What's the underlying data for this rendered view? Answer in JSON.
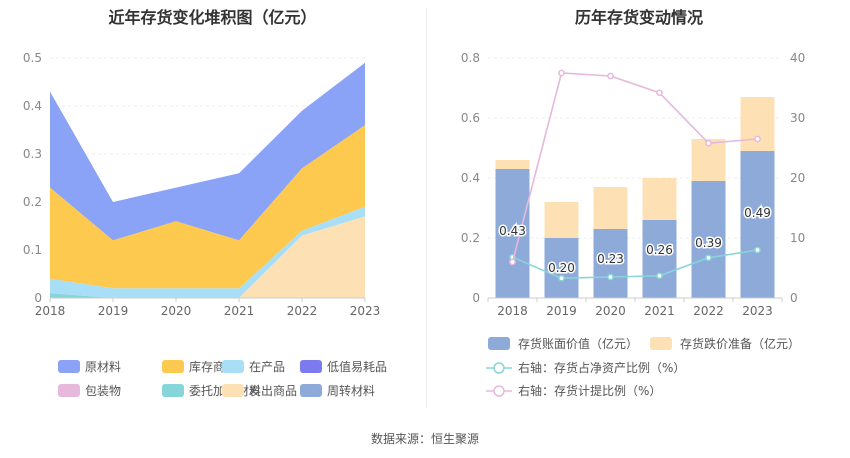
{
  "footer": {
    "source": "数据来源：恒生聚源"
  },
  "chart_data": [
    {
      "type": "area",
      "title": "近年存货变化堆积图（亿元）",
      "categories": [
        "2018",
        "2019",
        "2020",
        "2021",
        "2022",
        "2023"
      ],
      "ylim": [
        0,
        0.5
      ],
      "yticks": [
        "0",
        "0.1",
        "0.2",
        "0.3",
        "0.4",
        "0.5"
      ],
      "series": [
        {
          "name": "原材料",
          "color": "#8aa3f7",
          "values": [
            0.2,
            0.08,
            0.07,
            0.14,
            0.12,
            0.13
          ]
        },
        {
          "name": "库存商品",
          "color": "#fdc94f",
          "values": [
            0.19,
            0.1,
            0.14,
            0.1,
            0.13,
            0.17
          ]
        },
        {
          "name": "在产品",
          "color": "#a8dff7",
          "values": [
            0.03,
            0.02,
            0.02,
            0.02,
            0.01,
            0.02
          ]
        },
        {
          "name": "低值易耗品",
          "color": "#7b7bef",
          "values": [
            0,
            0,
            0,
            0,
            0,
            0
          ]
        },
        {
          "name": "包装物",
          "color": "#e6b8dc",
          "values": [
            0,
            0,
            0,
            0,
            0,
            0
          ]
        },
        {
          "name": "委托加工材料",
          "color": "#86d5d8",
          "values": [
            0.01,
            0,
            0,
            0,
            0,
            0
          ]
        },
        {
          "name": "发出商品",
          "color": "#fde0b3",
          "values": [
            0,
            0,
            0,
            0,
            0.13,
            0.17
          ]
        },
        {
          "name": "周转材料",
          "color": "#8eaad9",
          "values": [
            0,
            0,
            0,
            0,
            0,
            0
          ]
        }
      ],
      "legend_position": "bottom",
      "grid": true
    },
    {
      "type": "bar",
      "title": "历年存货变动情况",
      "categories": [
        "2018",
        "2019",
        "2020",
        "2021",
        "2022",
        "2023"
      ],
      "ylim_left": [
        0,
        0.8
      ],
      "yticks_left": [
        "0",
        "0.2",
        "0.4",
        "0.6",
        "0.8"
      ],
      "ylim_right": [
        0,
        40
      ],
      "yticks_right": [
        "0",
        "10",
        "20",
        "30",
        "40"
      ],
      "bar_series": [
        {
          "name": "存货账面价值（亿元）",
          "color": "#8eaad9",
          "values": [
            0.43,
            0.2,
            0.23,
            0.26,
            0.39,
            0.49
          ],
          "labels": [
            "0.43",
            "0.20",
            "0.23",
            "0.26",
            "0.39",
            "0.49"
          ]
        },
        {
          "name": "存货跌价准备（亿元）",
          "color": "#fde0b3",
          "values": [
            0.03,
            0.12,
            0.14,
            0.14,
            0.14,
            0.18
          ]
        }
      ],
      "line_series": [
        {
          "name": "右轴：存货占净资产比例（%）",
          "color": "#86d5d8",
          "values": [
            6.8,
            3.3,
            3.5,
            3.7,
            6.7,
            8.0
          ]
        },
        {
          "name": "右轴：存货计提比例（%）",
          "color": "#e6b8dc",
          "values": [
            6.0,
            37.5,
            37.0,
            34.2,
            25.8,
            26.5
          ]
        }
      ],
      "legend_position": "bottom",
      "grid": true
    }
  ]
}
